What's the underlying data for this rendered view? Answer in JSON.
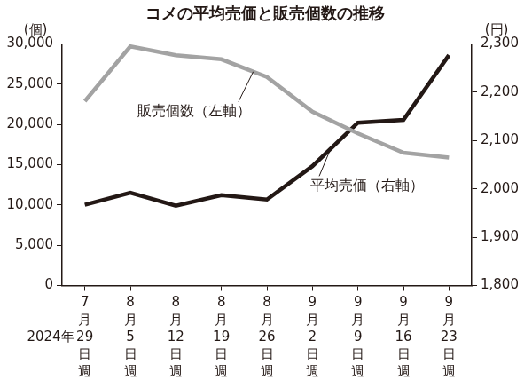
{
  "chart_data": {
    "type": "line",
    "title": "コメの平均売価と販売個数の推移",
    "ylabel": "(個)",
    "y2label": "(円)",
    "annotations": [
      "2024年"
    ],
    "categories": [
      "7月29日週",
      "8月5日週",
      "8月12日週",
      "8月19日週",
      "8月26日週",
      "9月2日週",
      "9月9日週",
      "9月16日週",
      "9月23日週"
    ],
    "series": [
      {
        "name": "販売個数（左軸）",
        "color": "#a3a3a3",
        "axis": "y",
        "values": [
          22900,
          29700,
          28600,
          28100,
          25900,
          21600,
          18900,
          16500,
          15900
        ]
      },
      {
        "name": "平均売価（右軸）",
        "color": "#231815",
        "axis": "y2",
        "values": [
          1967,
          1992,
          1965,
          1987,
          1978,
          2047,
          2137,
          2143,
          2277
        ]
      }
    ],
    "ylim": [
      0,
      30000
    ],
    "yticks": [
      0,
      {
        "value": 5000,
        "label": "5,000"
      },
      {
        "value": 10000,
        "label": "10,000"
      },
      {
        "value": 15000,
        "label": "15,000"
      },
      {
        "value": 20000,
        "label": "20,000"
      },
      {
        "value": 25000,
        "label": "25,000"
      },
      {
        "value": 30000,
        "label": "30,000"
      }
    ],
    "y2lim": [
      1800,
      2300
    ],
    "y2ticks": [
      {
        "value": 1800,
        "label": "1,800"
      },
      {
        "value": 1900,
        "label": "1,900"
      },
      {
        "value": 2000,
        "label": "2,000"
      },
      {
        "value": 2100,
        "label": "2,100"
      },
      {
        "value": 2200,
        "label": "2,200"
      },
      {
        "value": 2300,
        "label": "2,300"
      }
    ],
    "grid": false,
    "legend": "none"
  }
}
